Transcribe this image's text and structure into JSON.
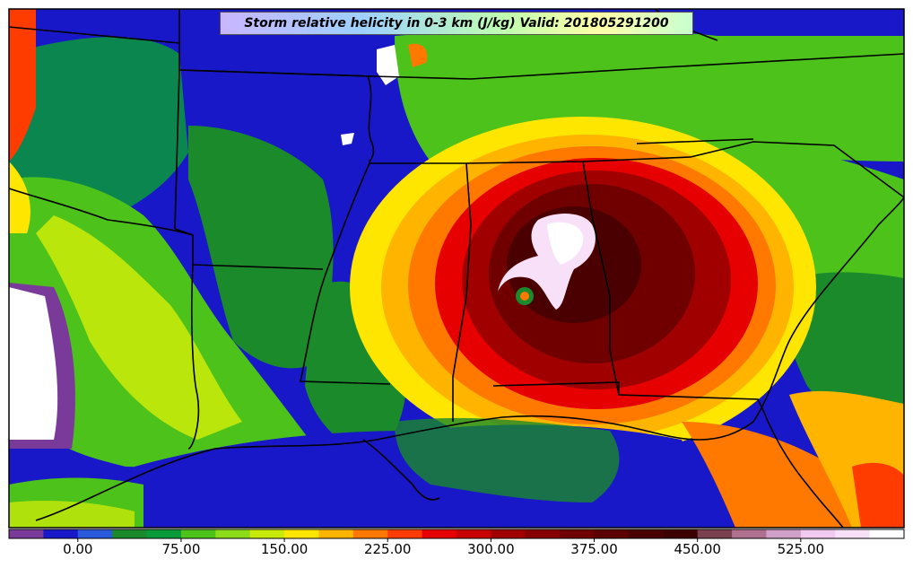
{
  "title": "Storm relative helicity in 0-3 km (J/kg) Valid: 201805291200",
  "colorbar": {
    "colors": [
      "#7a3a9a",
      "#1818c8",
      "#2a5adc",
      "#1a8a2a",
      "#0a9a3a",
      "#4cc21a",
      "#8cdc1a",
      "#c8ea0a",
      "#ffe600",
      "#ffb400",
      "#ff7800",
      "#ff3c00",
      "#e60000",
      "#c80000",
      "#a00000",
      "#860000",
      "#700000",
      "#5a0000",
      "#4a0000",
      "#3c0000",
      "#7a4050",
      "#b07090",
      "#d0a0c8",
      "#f0c8f0",
      "#f8e0f8",
      "#ffffff"
    ],
    "tick_labels": [
      "0.00",
      "75.00",
      "150.00",
      "225.00",
      "300.00",
      "375.00",
      "450.00",
      "525.00"
    ]
  }
}
